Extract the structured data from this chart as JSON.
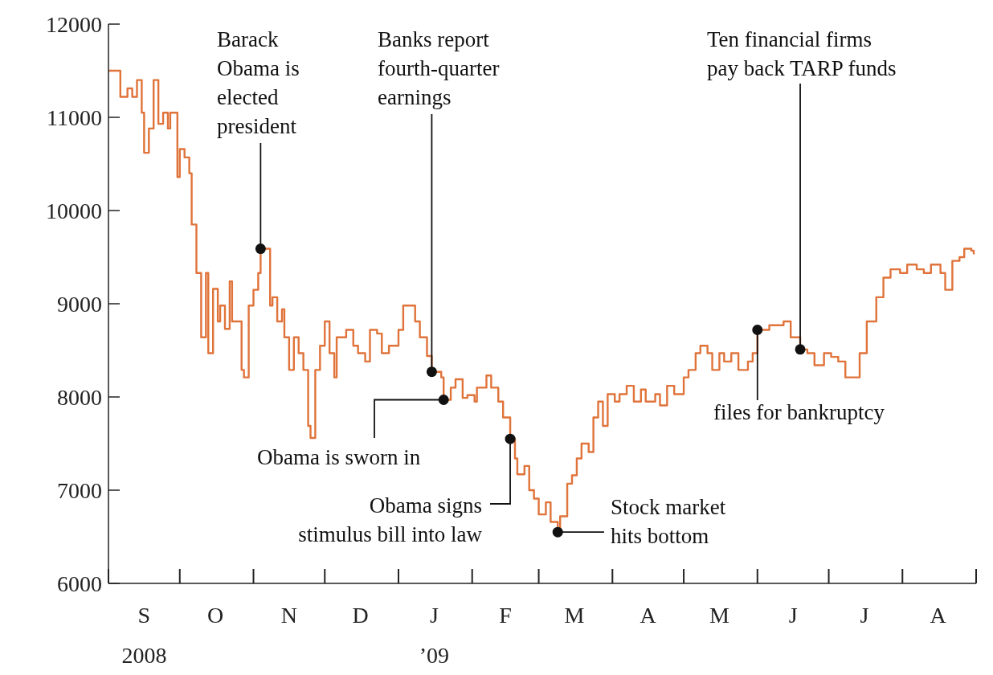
{
  "chart_data": {
    "type": "step",
    "color": "#e0733a",
    "x": [
      "2008-09-01",
      "2008-09-05",
      "2008-09-06",
      "2008-09-09",
      "2008-09-11",
      "2008-09-13",
      "2008-09-15",
      "2008-09-16",
      "2008-09-18",
      "2008-09-20",
      "2008-09-22",
      "2008-09-24",
      "2008-09-26",
      "2008-09-27",
      "2008-09-30",
      "2008-10-01",
      "2008-10-03",
      "2008-10-05",
      "2008-10-06",
      "2008-10-08",
      "2008-10-10",
      "2008-10-12",
      "2008-10-13",
      "2008-10-15",
      "2008-10-17",
      "2008-10-18",
      "2008-10-20",
      "2008-10-22",
      "2008-10-23",
      "2008-10-27",
      "2008-10-28",
      "2008-10-30",
      "2008-11-01",
      "2008-11-03",
      "2008-11-04",
      "2008-11-08",
      "2008-11-09",
      "2008-11-11",
      "2008-11-13",
      "2008-11-14",
      "2008-11-16",
      "2008-11-18",
      "2008-11-20",
      "2008-11-22",
      "2008-11-24",
      "2008-11-25",
      "2008-11-27",
      "2008-11-29",
      "2008-12-01",
      "2008-12-03",
      "2008-12-05",
      "2008-12-06",
      "2008-12-10",
      "2008-12-13",
      "2008-12-15",
      "2008-12-18",
      "2008-12-20",
      "2008-12-23",
      "2008-12-25",
      "2008-12-28",
      "2009-01-01",
      "2009-01-03",
      "2009-01-06",
      "2009-01-08",
      "2009-01-10",
      "2009-01-13",
      "2009-01-15",
      "2009-01-18",
      "2009-01-19",
      "2009-01-20",
      "2009-01-23",
      "2009-01-25",
      "2009-01-28",
      "2009-01-30",
      "2009-02-02",
      "2009-02-03",
      "2009-02-07",
      "2009-02-09",
      "2009-02-12",
      "2009-02-14",
      "2009-02-17",
      "2009-02-19",
      "2009-02-20",
      "2009-02-23",
      "2009-02-25",
      "2009-02-27",
      "2009-03-01",
      "2009-03-04",
      "2009-03-06",
      "2009-03-09",
      "2009-03-10",
      "2009-03-13",
      "2009-03-15",
      "2009-03-17",
      "2009-03-19",
      "2009-03-22",
      "2009-03-24",
      "2009-03-26",
      "2009-03-28",
      "2009-03-30",
      "2009-04-02",
      "2009-04-04",
      "2009-04-07",
      "2009-04-10",
      "2009-04-13",
      "2009-04-15",
      "2009-04-19",
      "2009-04-21",
      "2009-04-24",
      "2009-04-27",
      "2009-05-01",
      "2009-05-03",
      "2009-05-06",
      "2009-05-08",
      "2009-05-11",
      "2009-05-13",
      "2009-05-16",
      "2009-05-18",
      "2009-05-21",
      "2009-05-24",
      "2009-05-28",
      "2009-05-30",
      "2009-06-01",
      "2009-06-03",
      "2009-06-06",
      "2009-06-08",
      "2009-06-12",
      "2009-06-15",
      "2009-06-19",
      "2009-06-22",
      "2009-06-25",
      "2009-06-29",
      "2009-07-02",
      "2009-07-05",
      "2009-07-08",
      "2009-07-11",
      "2009-07-14",
      "2009-07-17",
      "2009-07-21",
      "2009-07-24",
      "2009-07-27",
      "2009-07-31",
      "2009-08-03",
      "2009-08-07",
      "2009-08-10",
      "2009-08-13",
      "2009-08-17",
      "2009-08-19",
      "2009-08-22",
      "2009-08-25",
      "2009-08-27",
      "2009-08-30",
      "2009-08-31"
    ],
    "values": [
      11500,
      11500,
      11220,
      11310,
      11220,
      11400,
      11050,
      10620,
      10880,
      11400,
      10930,
      11050,
      10880,
      11050,
      10360,
      10660,
      10570,
      10400,
      9850,
      9330,
      8640,
      9330,
      8470,
      9160,
      8810,
      8980,
      8730,
      9240,
      8810,
      8290,
      8210,
      8980,
      9150,
      9330,
      9590,
      8980,
      9070,
      8810,
      8940,
      8640,
      8290,
      8640,
      8470,
      8290,
      7690,
      7560,
      8290,
      8550,
      8810,
      8470,
      8210,
      8640,
      8720,
      8550,
      8470,
      8380,
      8720,
      8680,
      8470,
      8550,
      8720,
      8980,
      8980,
      8810,
      8640,
      8440,
      8270,
      8270,
      8210,
      7970,
      8100,
      8190,
      7990,
      8020,
      7950,
      8100,
      8230,
      8100,
      7950,
      7780,
      7550,
      7340,
      7170,
      7260,
      7000,
      6910,
      6740,
      6870,
      6660,
      6550,
      6720,
      7070,
      7160,
      7340,
      7500,
      7410,
      7780,
      7950,
      7690,
      8030,
      7950,
      8030,
      8120,
      7950,
      8080,
      7950,
      8030,
      7910,
      8120,
      8030,
      8210,
      8290,
      8470,
      8550,
      8470,
      8290,
      8470,
      8380,
      8470,
      8290,
      8380,
      8470,
      8720,
      8720,
      8770,
      8770,
      8810,
      8640,
      8510,
      8470,
      8340,
      8470,
      8430,
      8380,
      8210,
      8210,
      8470,
      8810,
      9070,
      9280,
      9370,
      9330,
      9420,
      9370,
      9330,
      9420,
      9330,
      9150,
      9460,
      9500,
      9590,
      9570,
      9530
    ],
    "xlim": [
      "2008-09-01",
      "2009-09-01"
    ],
    "xticks": [
      {
        "value": "2008-09-16",
        "label": "S\n2008"
      },
      {
        "value": "2008-10-16",
        "label": "O"
      },
      {
        "value": "2008-11-16",
        "label": "N"
      },
      {
        "value": "2008-12-16",
        "label": "D"
      },
      {
        "value": "2009-01-16",
        "label": "J\n’09"
      },
      {
        "value": "2009-02-15",
        "label": "F"
      },
      {
        "value": "2009-03-16",
        "label": "M"
      },
      {
        "value": "2009-04-16",
        "label": "A"
      },
      {
        "value": "2009-05-16",
        "label": "M"
      },
      {
        "value": "2009-06-16",
        "label": "J"
      },
      {
        "value": "2009-07-16",
        "label": "J"
      },
      {
        "value": "2009-08-16",
        "label": "A"
      }
    ],
    "ylim": [
      6000,
      12000
    ],
    "yticks": [
      6000,
      7000,
      8000,
      9000,
      10000,
      11000,
      12000
    ],
    "grid": false,
    "annotations": [
      {
        "text": "Barack Obama is elected president",
        "x": "2008-11-04",
        "y": 9590
      },
      {
        "text": "Banks report fourth-quarter earnings",
        "x": "2009-01-15",
        "y": 8270
      },
      {
        "text": "Obama is sworn in",
        "x": "2009-01-20",
        "y": 7970
      },
      {
        "text": "Obama signs stimulus bill into law",
        "x": "2009-02-17",
        "y": 7550
      },
      {
        "text": "Stock market hits bottom",
        "x": "2009-03-09",
        "y": 6550
      },
      {
        "text": "files for bankruptcy",
        "x": "2009-06-01",
        "y": 8720
      },
      {
        "text": "Ten financial firms pay back TARP funds",
        "x": "2009-06-19",
        "y": 8510
      }
    ]
  }
}
